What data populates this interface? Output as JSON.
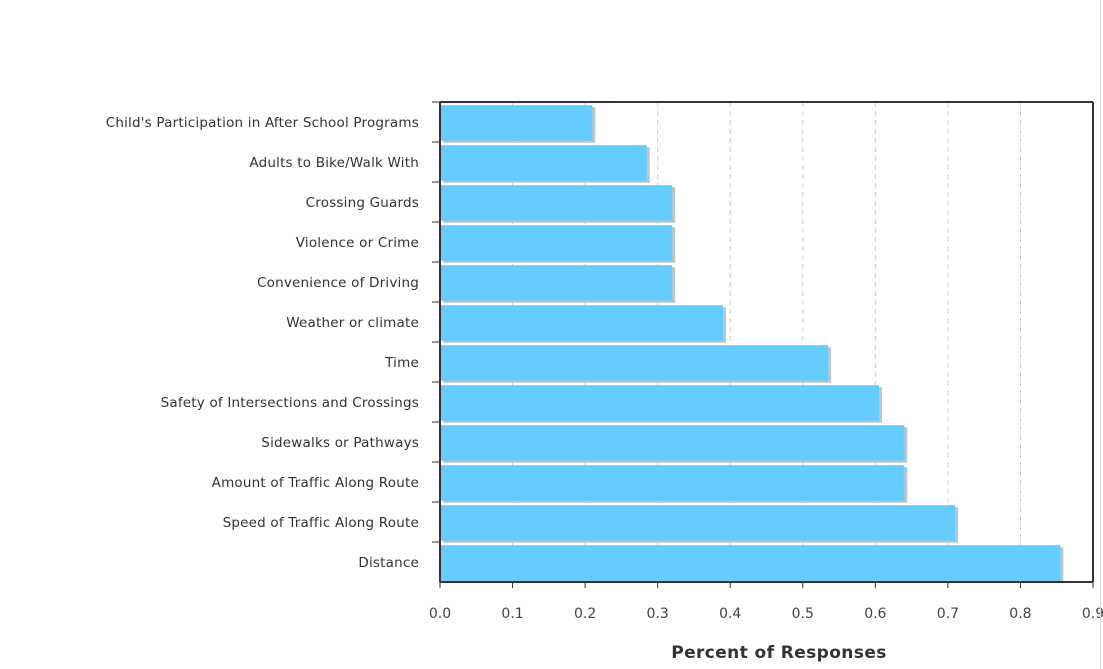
{
  "chart_data": {
    "type": "bar",
    "orientation": "horizontal",
    "categories": [
      "Child's Participation in After School Programs",
      "Adults to Bike/Walk With",
      "Crossing Guards",
      "Violence or Crime",
      "Convenience of Driving",
      "Weather or climate",
      "Time",
      "Safety of Intersections and Crossings",
      "Sidewalks or Pathways",
      "Amount of Traffic Along Route",
      "Speed of Traffic Along Route",
      "Distance"
    ],
    "values": [
      0.21,
      0.285,
      0.32,
      0.32,
      0.32,
      0.39,
      0.535,
      0.605,
      0.64,
      0.64,
      0.71,
      0.855
    ],
    "xlabel": "Percent of Responses",
    "ylabel": "",
    "xlim": [
      0,
      0.9
    ],
    "xticks": [
      "0.0",
      "0.1",
      "0.2",
      "0.3",
      "0.4",
      "0.5",
      "0.6",
      "0.7",
      "0.8",
      "0.9"
    ],
    "grid": "vertical dashed",
    "bar_color": "#66ccff",
    "shadow_color": "#c4c4c4"
  }
}
